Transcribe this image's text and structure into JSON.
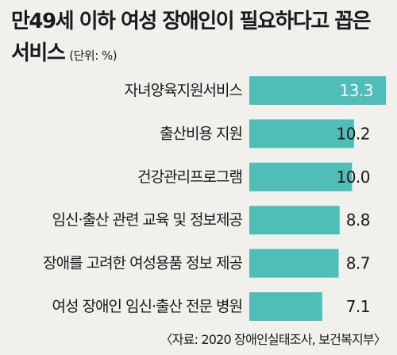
{
  "header": {
    "title_line1": "만49세 이하 여성 장애인이 필요하다고 꼽은",
    "title_line2": "서비스",
    "unit": "(단위: %)"
  },
  "source": "〈자료: 2020 장애인실태조사, 보건복지부〉",
  "colors": {
    "background": "#f1f0ec",
    "bar": "#4fbeb6",
    "text": "#1a1a1a",
    "top_value_text": "#ffffff"
  },
  "chart_data": {
    "type": "bar",
    "orientation": "horizontal",
    "categories": [
      "자녀양육지원서비스",
      "출산비용 지원",
      "건강관리프로그램",
      "임신·출산 관련 교육 및 정보제공",
      "장애를 고려한 여성용품 정보 제공",
      "여성 장애인 임신·출산 전문 병원"
    ],
    "values": [
      13.3,
      10.2,
      10.0,
      8.8,
      8.7,
      7.1
    ],
    "value_labels": [
      "13.3",
      "10.2",
      "10.0",
      "8.8",
      "8.7",
      "7.1"
    ],
    "xlim": [
      0,
      13.3
    ],
    "grid": false,
    "legend": "none"
  }
}
